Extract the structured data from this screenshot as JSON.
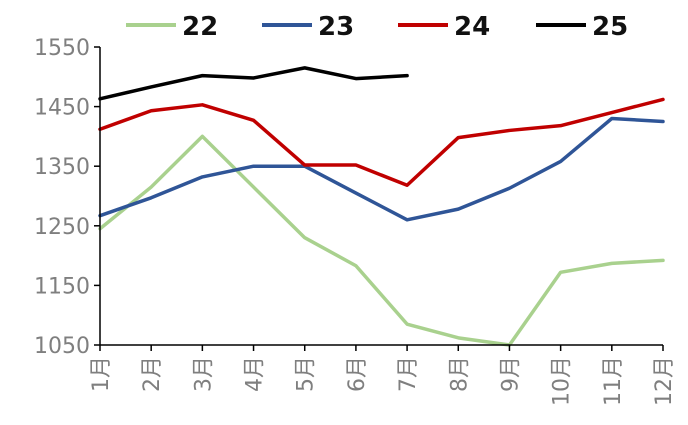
{
  "chart_data": {
    "type": "line",
    "categories": [
      "1月",
      "2月",
      "3月",
      "4月",
      "5月",
      "6月",
      "7月",
      "8月",
      "9月",
      "10月",
      "11月",
      "12月"
    ],
    "ylim": [
      1050,
      1550
    ],
    "yticks": [
      1050,
      1150,
      1250,
      1350,
      1450,
      1550
    ],
    "grid": false,
    "legend_position": "top",
    "series": [
      {
        "name": "22",
        "color": "#a9d18e",
        "values": [
          1245,
          1315,
          1400,
          1315,
          1230,
          1183,
          1085,
          1062,
          1050,
          1172,
          1187,
          1192
        ]
      },
      {
        "name": "23",
        "color": "#2f5597",
        "values": [
          1267,
          1297,
          1332,
          1350,
          1350,
          1305,
          1260,
          1278,
          1313,
          1358,
          1430,
          1425
        ]
      },
      {
        "name": "24",
        "color": "#c00000",
        "values": [
          1412,
          1443,
          1453,
          1427,
          1352,
          1352,
          1318,
          1398,
          1410,
          1418,
          1440,
          1462
        ]
      },
      {
        "name": "25",
        "color": "#000000",
        "values": [
          1463,
          1483,
          1502,
          1498,
          1515,
          1497,
          1502,
          null,
          null,
          null,
          null,
          null
        ]
      }
    ]
  }
}
